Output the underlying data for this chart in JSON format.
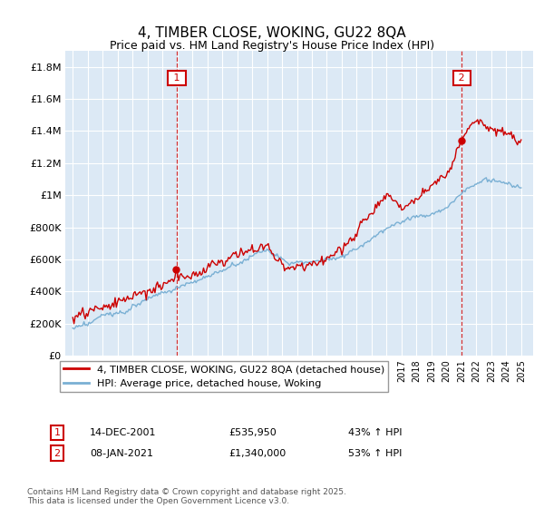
{
  "title": "4, TIMBER CLOSE, WOKING, GU22 8QA",
  "subtitle": "Price paid vs. HM Land Registry's House Price Index (HPI)",
  "legend_line1": "4, TIMBER CLOSE, WOKING, GU22 8QA (detached house)",
  "legend_line2": "HPI: Average price, detached house, Woking",
  "annotation1_label": "1",
  "annotation1_date": "14-DEC-2001",
  "annotation1_price": "£535,950",
  "annotation1_hpi": "43% ↑ HPI",
  "annotation1_year": 2001.95,
  "annotation1_value": 535950,
  "annotation2_label": "2",
  "annotation2_date": "08-JAN-2021",
  "annotation2_price": "£1,340,000",
  "annotation2_hpi": "53% ↑ HPI",
  "annotation2_year": 2021.03,
  "annotation2_value": 1340000,
  "footnote": "Contains HM Land Registry data © Crown copyright and database right 2025.\nThis data is licensed under the Open Government Licence v3.0.",
  "line_color_red": "#cc0000",
  "line_color_blue": "#7ab0d4",
  "vline_color": "#cc0000",
  "background_color": "#ffffff",
  "plot_bg_color": "#dce9f5",
  "grid_color": "#ffffff",
  "ylim": [
    0,
    1900000
  ],
  "yticks": [
    0,
    200000,
    400000,
    600000,
    800000,
    1000000,
    1200000,
    1400000,
    1600000,
    1800000
  ],
  "ytick_labels": [
    "£0",
    "£200K",
    "£400K",
    "£600K",
    "£800K",
    "£1M",
    "£1.2M",
    "£1.4M",
    "£1.6M",
    "£1.8M"
  ],
  "xlim_start": 1994.5,
  "xlim_end": 2025.8
}
